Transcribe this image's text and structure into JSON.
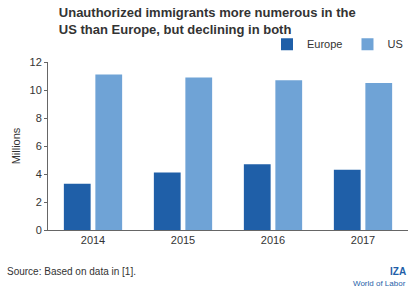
{
  "chart_data": {
    "type": "bar",
    "title": "Unauthorized immigrants more numerous in the\nUS than Europe, but declining in both",
    "ylabel": "Millions",
    "categories": [
      "2014",
      "2015",
      "2016",
      "2017"
    ],
    "series": [
      {
        "name": "Europe",
        "color": "#1f5fa8",
        "values": [
          3.3,
          4.1,
          4.7,
          4.3
        ]
      },
      {
        "name": "US",
        "color": "#6fa3d6",
        "values": [
          11.1,
          10.9,
          10.7,
          10.5
        ]
      }
    ],
    "ylim": [
      0,
      12
    ],
    "yticks": [
      0,
      2,
      4,
      6,
      8,
      10,
      12
    ],
    "grid": false,
    "legend": "top right",
    "source": "Source: Based on data in [1].",
    "logo": [
      "IZA",
      "World of Labor"
    ]
  }
}
